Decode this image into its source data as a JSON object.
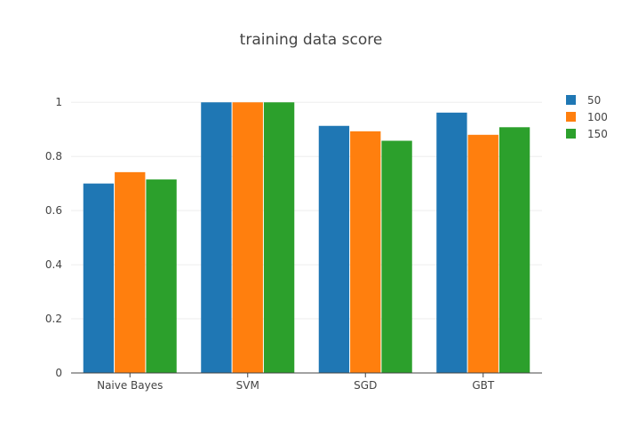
{
  "chart_data": {
    "type": "bar",
    "title": "training data score",
    "xlabel": "",
    "ylabel": "",
    "categories": [
      "Naive Bayes",
      "SVM",
      "SGD",
      "GBT"
    ],
    "series": [
      {
        "name": "50",
        "color": "#1f77b4",
        "values": [
          0.7,
          1.0,
          0.913,
          0.962
        ]
      },
      {
        "name": "100",
        "color": "#ff7f0e",
        "values": [
          0.742,
          1.0,
          0.893,
          0.88
        ]
      },
      {
        "name": "150",
        "color": "#2ca02c",
        "values": [
          0.715,
          1.0,
          0.858,
          0.908
        ]
      }
    ],
    "ylim": [
      0,
      1.05
    ],
    "yticks": [
      0,
      0.2,
      0.4,
      0.6,
      0.8,
      1
    ],
    "ytick_labels": [
      "0",
      "0.2",
      "0.4",
      "0.6",
      "0.8",
      "1"
    ],
    "grid": true,
    "legend_position": "top-right"
  }
}
